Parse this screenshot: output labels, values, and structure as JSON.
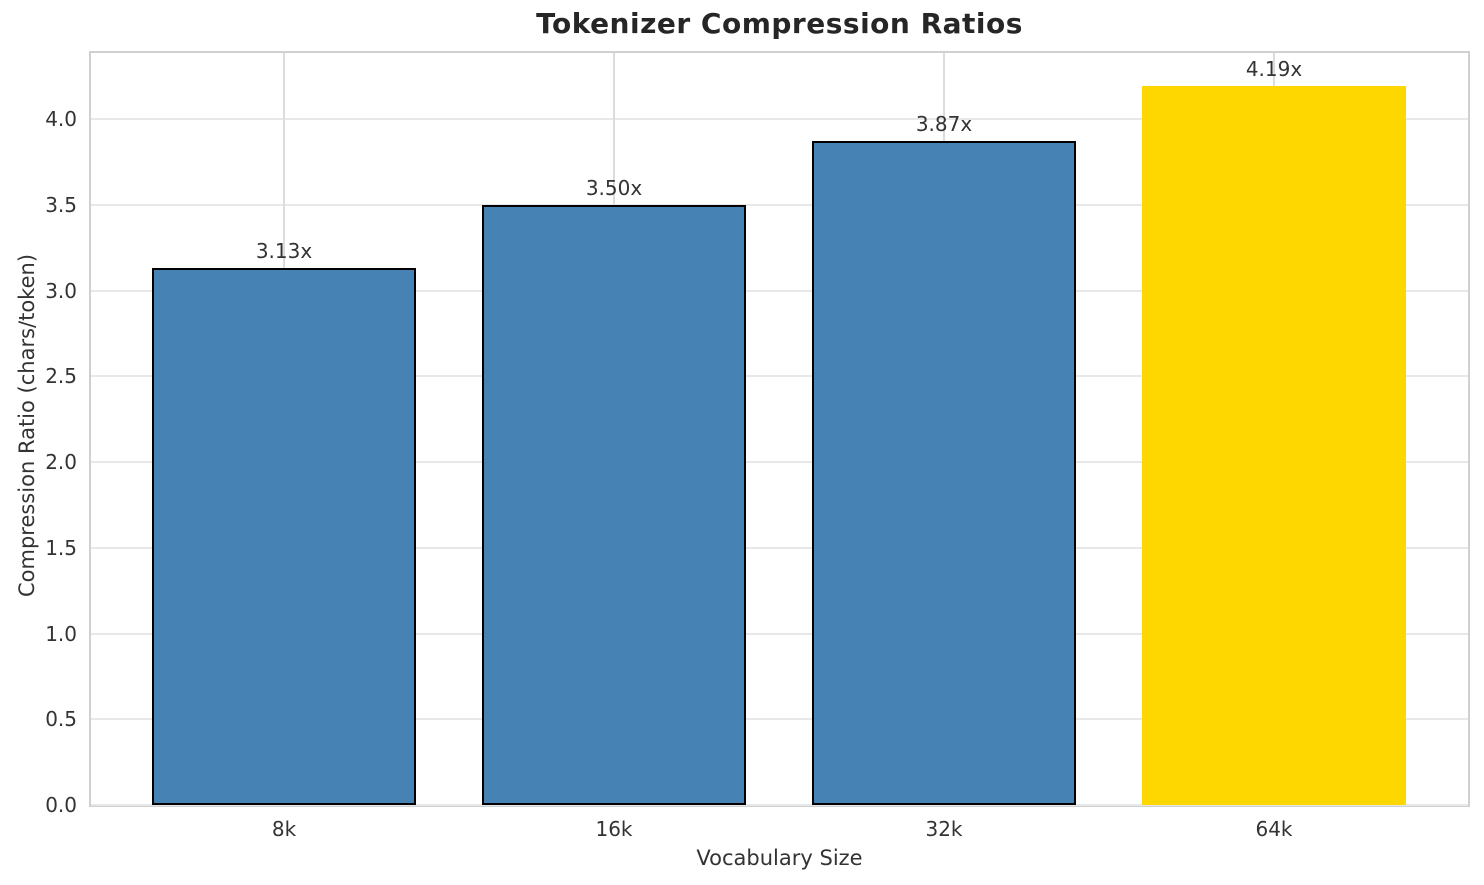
{
  "chart_data": {
    "type": "bar",
    "title": "Tokenizer Compression Ratios",
    "xlabel": "Vocabulary Size",
    "ylabel": "Compression Ratio (chars/token)",
    "categories": [
      "8k",
      "16k",
      "32k",
      "64k"
    ],
    "values": [
      3.13,
      3.5,
      3.87,
      4.19
    ],
    "bar_labels": [
      "3.13x",
      "3.50x",
      "3.87x",
      "4.19x"
    ],
    "bar_colors": [
      "#4682B4",
      "#4682B4",
      "#4682B4",
      "#FFD700"
    ],
    "bar_edge_colors": [
      "#000000",
      "#000000",
      "#000000",
      "none"
    ],
    "yticks": [
      0.0,
      0.5,
      1.0,
      1.5,
      2.0,
      2.5,
      3.0,
      3.5,
      4.0
    ],
    "ytick_labels": [
      "0.0",
      "0.5",
      "1.0",
      "1.5",
      "2.0",
      "2.5",
      "3.0",
      "3.5",
      "4.0"
    ],
    "ylim": [
      0,
      4.385
    ],
    "grid": true,
    "grid_axes": "both",
    "legend": "none",
    "highlight_category": "64k",
    "colors": {
      "bar_default": "#4682B4",
      "bar_highlight": "#FFD700",
      "title_text": "#262626",
      "tick_text": "#333333",
      "gridline": "#e0e0e0",
      "spine": "#d0d0d0"
    }
  }
}
